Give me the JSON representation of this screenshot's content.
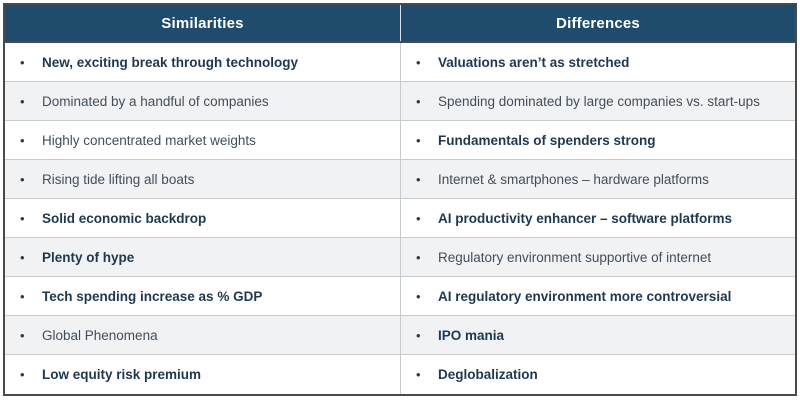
{
  "bullet_glyph": "•",
  "colors": {
    "header_bg": "#1F4B6C",
    "header_text": "#FFFFFF",
    "outer_border": "#4A4A4A",
    "row_divider": "#C7CBCE",
    "alt_row_bg": "#F1F2F3",
    "bold_text": "#1F3850",
    "regular_text": "#414E5C"
  },
  "table": {
    "columns": [
      {
        "header": "Similarities",
        "rows": [
          {
            "text": "New, exciting break through technology",
            "bold": true
          },
          {
            "text": "Dominated by a handful of companies",
            "bold": false
          },
          {
            "text": "Highly concentrated market weights",
            "bold": false
          },
          {
            "text": "Rising tide lifting all boats",
            "bold": false
          },
          {
            "text": "Solid economic backdrop",
            "bold": true
          },
          {
            "text": "Plenty of hype",
            "bold": true
          },
          {
            "text": "Tech spending increase as % GDP",
            "bold": true
          },
          {
            "text": "Global Phenomena",
            "bold": false
          },
          {
            "text": "Low equity risk premium",
            "bold": true
          }
        ]
      },
      {
        "header": "Differences",
        "rows": [
          {
            "text": "Valuations aren’t as stretched",
            "bold": true
          },
          {
            "text": "Spending dominated by large companies vs. start-ups",
            "bold": false
          },
          {
            "text": "Fundamentals of spenders strong",
            "bold": true
          },
          {
            "text": "Internet & smartphones – hardware platforms",
            "bold": false
          },
          {
            "text": "AI productivity enhancer – software platforms",
            "bold": true
          },
          {
            "text": "Regulatory environment supportive of internet",
            "bold": false
          },
          {
            "text": "AI regulatory environment more controversial",
            "bold": true
          },
          {
            "text": "IPO mania",
            "bold": true
          },
          {
            "text": "Deglobalization",
            "bold": true
          }
        ]
      }
    ]
  }
}
